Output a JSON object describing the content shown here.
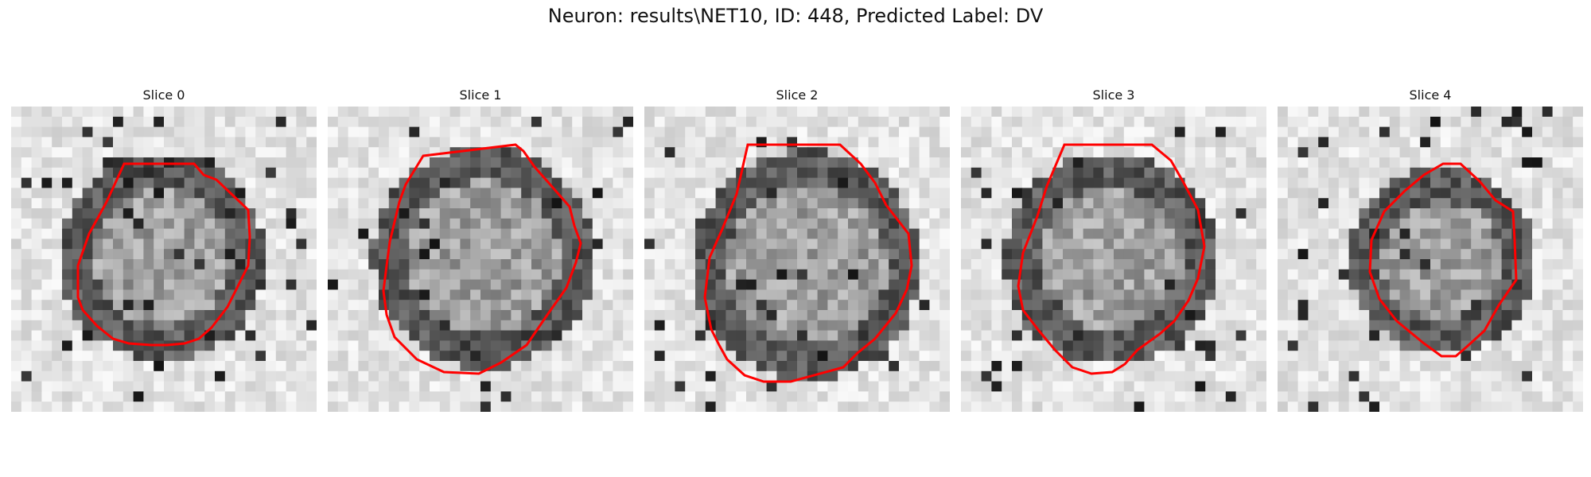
{
  "figure": {
    "title": "Neuron: results\\NET10, ID: 448, Predicted Label: DV",
    "contour_color": "#ff0000",
    "colormap": "grayscale"
  },
  "slices": [
    {
      "title": "Slice 0"
    },
    {
      "title": "Slice 1"
    },
    {
      "title": "Slice 2"
    },
    {
      "title": "Slice 3"
    },
    {
      "title": "Slice 4"
    }
  ]
}
